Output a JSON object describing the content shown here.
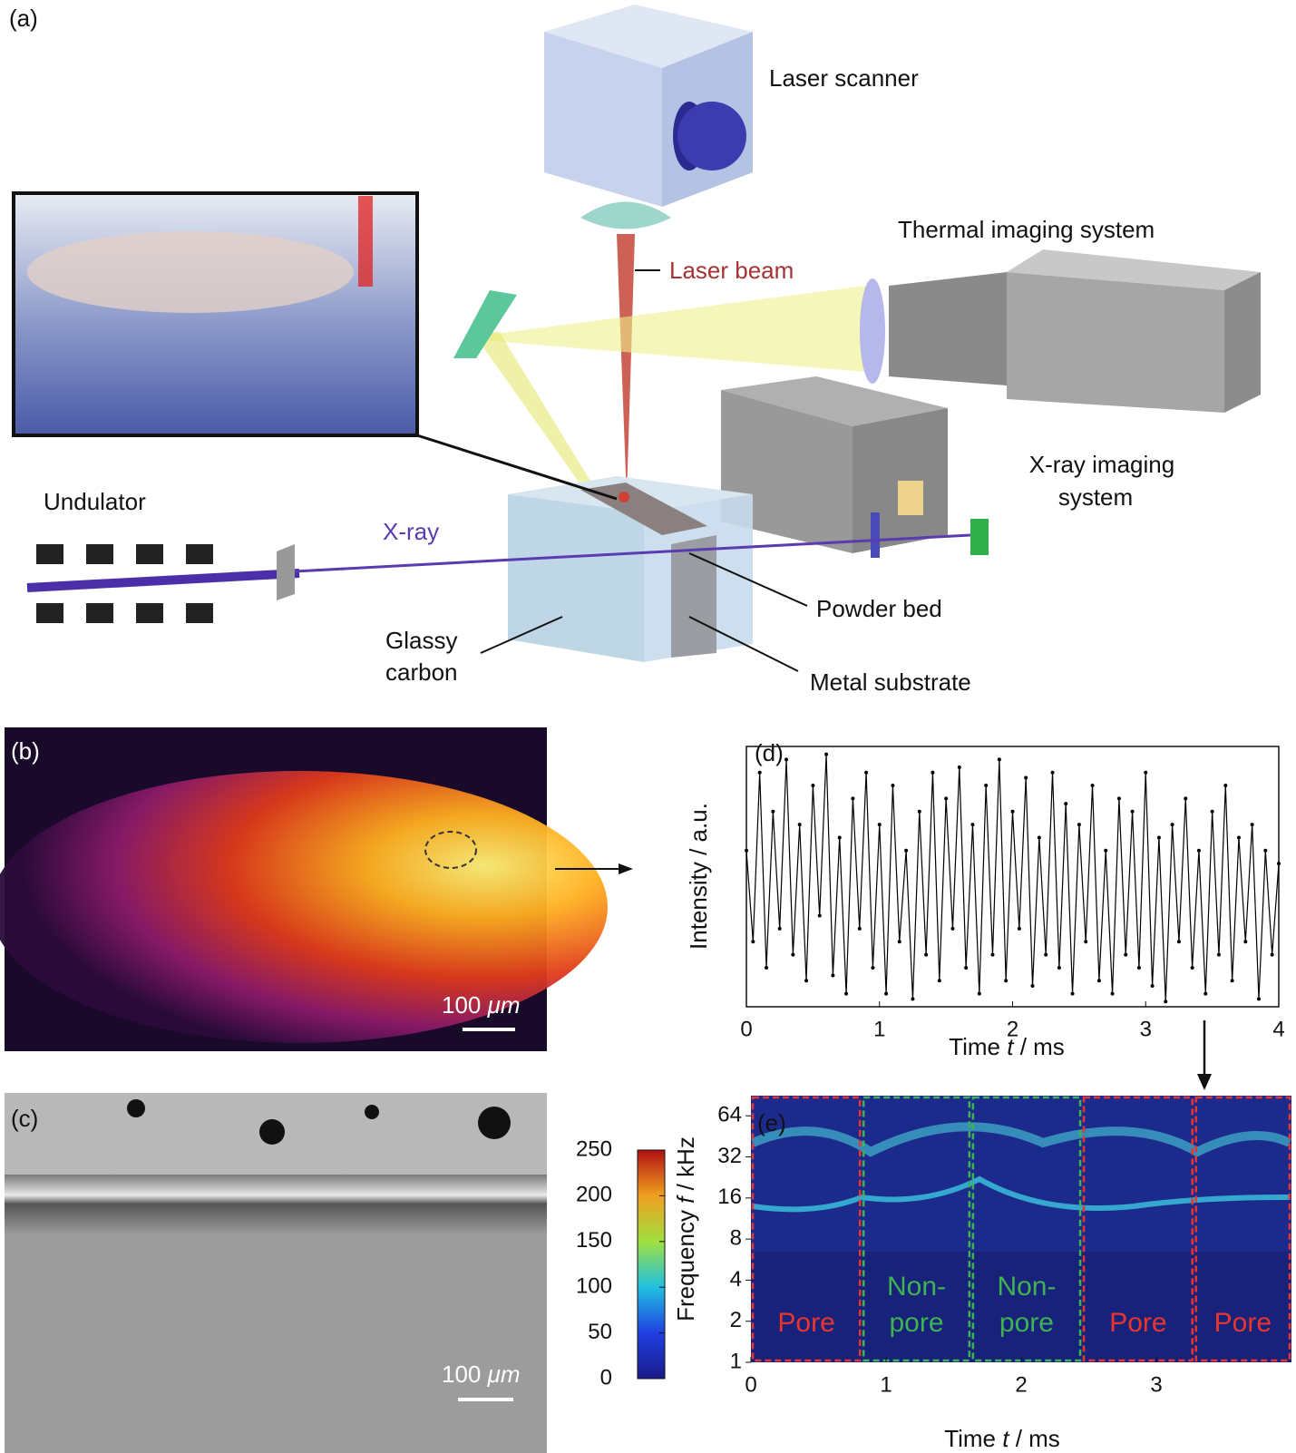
{
  "panel_a": {
    "label": "(a)",
    "laser_scanner": "Laser scanner",
    "thermal": "Thermal imaging system",
    "laser_beam": "Laser beam",
    "xray_system": [
      "X-ray imaging",
      "system"
    ],
    "undulator": "Undulator",
    "xray": "X-ray",
    "powder_bed": "Powder bed",
    "glassy_carbon": [
      "Glassy",
      "carbon"
    ],
    "metal_substrate": "Metal substrate"
  },
  "panel_b": {
    "label": "(b)",
    "scale_bar": [
      "100 ",
      "μm"
    ]
  },
  "panel_c": {
    "label": "(c)",
    "scale_bar": [
      "100 ",
      "μm"
    ]
  },
  "chart_data": [
    {
      "type": "line",
      "label": "(d)",
      "y_label": "Intensity / a.u.",
      "x_label": [
        "Time ",
        "t",
        " / ms"
      ],
      "color": "#000000",
      "x": [
        0,
        0.05,
        0.1,
        0.15,
        0.2,
        0.25,
        0.3,
        0.35,
        0.4,
        0.45,
        0.5,
        0.55,
        0.6,
        0.65,
        0.7,
        0.75,
        0.8,
        0.85,
        0.9,
        0.95,
        1,
        1.05,
        1.1,
        1.15,
        1.2,
        1.25,
        1.3,
        1.35,
        1.4,
        1.45,
        1.5,
        1.55,
        1.6,
        1.65,
        1.7,
        1.75,
        1.8,
        1.85,
        1.9,
        1.95,
        2,
        2.05,
        2.1,
        2.15,
        2.2,
        2.25,
        2.3,
        2.35,
        2.4,
        2.45,
        2.5,
        2.55,
        2.6,
        2.65,
        2.7,
        2.75,
        2.8,
        2.85,
        2.9,
        2.95,
        3,
        3.05,
        3.1,
        3.15,
        3.2,
        3.25,
        3.3,
        3.35,
        3.4,
        3.45,
        3.5,
        3.55,
        3.6,
        3.65,
        3.7,
        3.75,
        3.8,
        3.85,
        3.9,
        3.95,
        4
      ],
      "values": [
        0.6,
        0.25,
        0.9,
        0.15,
        0.75,
        0.3,
        0.95,
        0.2,
        0.7,
        0.1,
        0.85,
        0.35,
        0.97,
        0.12,
        0.65,
        0.05,
        0.8,
        0.3,
        0.9,
        0.15,
        0.7,
        0.05,
        0.85,
        0.25,
        0.6,
        0.03,
        0.75,
        0.2,
        0.9,
        0.1,
        0.8,
        0.3,
        0.92,
        0.15,
        0.7,
        0.05,
        0.85,
        0.2,
        0.95,
        0.1,
        0.75,
        0.3,
        0.88,
        0.08,
        0.65,
        0.2,
        0.9,
        0.15,
        0.78,
        0.05,
        0.7,
        0.25,
        0.85,
        0.1,
        0.6,
        0.05,
        0.8,
        0.2,
        0.75,
        0.15,
        0.9,
        0.08,
        0.65,
        0.02,
        0.7,
        0.25,
        0.8,
        0.15,
        0.6,
        0.05,
        0.75,
        0.2,
        0.85,
        0.1,
        0.65,
        0.25,
        0.7,
        0.03,
        0.6,
        0.2,
        0.55
      ],
      "xlim": [
        0,
        4
      ],
      "xticks": [
        0,
        1,
        2,
        3,
        4
      ],
      "ylim": [
        0,
        1
      ]
    },
    {
      "type": "spectrogram",
      "label": "(e)",
      "y_label": [
        "Frequency ",
        "f",
        " / kHz"
      ],
      "x_label": [
        "Time ",
        "t",
        " / ms"
      ],
      "xlim": [
        0,
        4
      ],
      "xticks": [
        0,
        1,
        2,
        3
      ],
      "ylim": [
        1,
        90
      ],
      "yticks": [
        1,
        2,
        4,
        8,
        16,
        32,
        64
      ],
      "log_y": true,
      "clim": [
        0,
        250
      ],
      "cticks": [
        0,
        50,
        100,
        150,
        200,
        250
      ],
      "regions": [
        {
          "lines": [
            "Pore"
          ],
          "start": 0,
          "end": 0.82,
          "color": "#e8362f"
        },
        {
          "lines": [
            "Non-",
            "pore"
          ],
          "start": 0.82,
          "end": 1.63,
          "color": "#3fb34f"
        },
        {
          "lines": [
            "Non-",
            "pore"
          ],
          "start": 1.63,
          "end": 2.45,
          "color": "#3fb34f"
        },
        {
          "lines": [
            "Pore"
          ],
          "start": 2.45,
          "end": 3.28,
          "color": "#e8362f"
        },
        {
          "lines": [
            "Pore"
          ],
          "start": 3.28,
          "end": 4,
          "color": "#e8362f"
        }
      ]
    }
  ]
}
